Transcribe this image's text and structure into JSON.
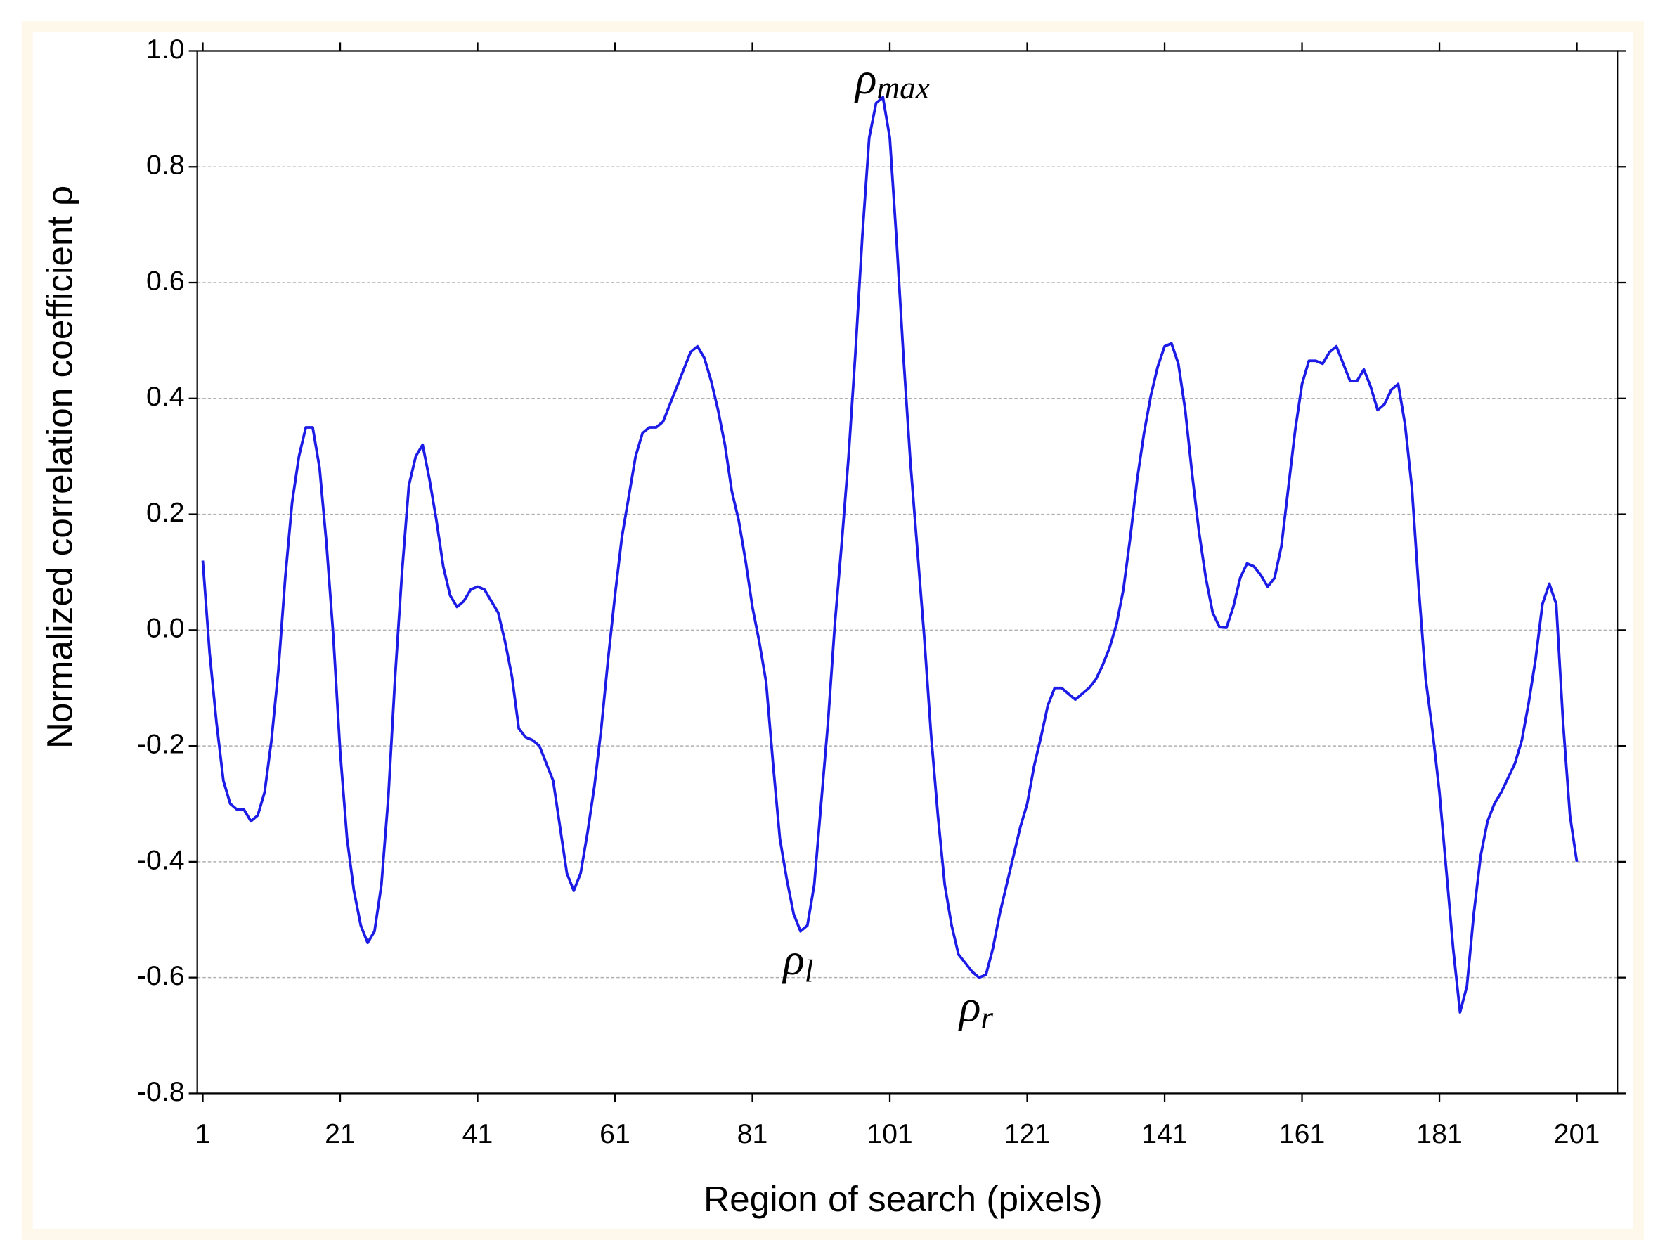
{
  "chart_data": {
    "type": "line",
    "xlabel": "Region of search (pixels)",
    "ylabel": "Normalized correlation coefficient ρ",
    "x": [
      1,
      2,
      3,
      4,
      5,
      6,
      7,
      8,
      9,
      10,
      11,
      12,
      13,
      14,
      15,
      16,
      17,
      18,
      19,
      20,
      21,
      22,
      23,
      24,
      25,
      26,
      27,
      28,
      29,
      30,
      31,
      32,
      33,
      34,
      35,
      36,
      37,
      38,
      39,
      40,
      41,
      42,
      43,
      44,
      45,
      46,
      47,
      48,
      49,
      50,
      51,
      52,
      53,
      54,
      55,
      56,
      57,
      58,
      59,
      60,
      61,
      62,
      63,
      64,
      65,
      66,
      67,
      68,
      69,
      70,
      71,
      72,
      73,
      74,
      75,
      76,
      77,
      78,
      79,
      80,
      81,
      82,
      83,
      84,
      85,
      86,
      87,
      88,
      89,
      90,
      91,
      92,
      93,
      94,
      95,
      96,
      97,
      98,
      99,
      100,
      101,
      102,
      103,
      104,
      105,
      106,
      107,
      108,
      109,
      110,
      111,
      112,
      113,
      114,
      115,
      116,
      117,
      118,
      119,
      120,
      121,
      122,
      123,
      124,
      125,
      126,
      127,
      128,
      129,
      130,
      131,
      132,
      133,
      134,
      135,
      136,
      137,
      138,
      139,
      140,
      141,
      142,
      143,
      144,
      145,
      146,
      147,
      148,
      149,
      150,
      151,
      152,
      153,
      154,
      155,
      156,
      157,
      158,
      159,
      160,
      161,
      162,
      163,
      164,
      165,
      166,
      167,
      168,
      169,
      170,
      171,
      172,
      173,
      174,
      175,
      176,
      177,
      178,
      179,
      180,
      181,
      182,
      183,
      184,
      185,
      186,
      187,
      188,
      189,
      190,
      191,
      192,
      193,
      194,
      195,
      196,
      197,
      198,
      199,
      200,
      201
    ],
    "series": [
      {
        "color": "#1c1ce6",
        "values": [
          0.12,
          -0.04,
          -0.16,
          -0.26,
          -0.3,
          -0.31,
          -0.31,
          -0.33,
          -0.32,
          -0.28,
          -0.19,
          -0.07,
          0.09,
          0.22,
          0.3,
          0.35,
          0.35,
          0.28,
          0.15,
          -0.01,
          -0.21,
          -0.36,
          -0.45,
          -0.51,
          -0.54,
          -0.52,
          -0.44,
          -0.29,
          -0.08,
          0.1,
          0.25,
          0.3,
          0.32,
          0.26,
          0.19,
          0.11,
          0.06,
          0.04,
          0.05,
          0.07,
          0.075,
          0.07,
          0.05,
          0.03,
          -0.02,
          -0.08,
          -0.17,
          -0.185,
          -0.19,
          -0.2,
          -0.23,
          -0.26,
          -0.34,
          -0.42,
          -0.45,
          -0.42,
          -0.35,
          -0.27,
          -0.17,
          -0.05,
          0.06,
          0.16,
          0.23,
          0.3,
          0.34,
          0.35,
          0.35,
          0.36,
          0.39,
          0.42,
          0.45,
          0.48,
          0.49,
          0.47,
          0.43,
          0.38,
          0.32,
          0.24,
          0.19,
          0.12,
          0.04,
          -0.02,
          -0.09,
          -0.23,
          -0.36,
          -0.43,
          -0.49,
          -0.52,
          -0.51,
          -0.44,
          -0.3,
          -0.16,
          0.01,
          0.15,
          0.3,
          0.48,
          0.68,
          0.85,
          0.91,
          0.92,
          0.85,
          0.67,
          0.47,
          0.29,
          0.14,
          -0.01,
          -0.18,
          -0.32,
          -0.44,
          -0.51,
          -0.56,
          -0.575,
          -0.59,
          -0.6,
          -0.595,
          -0.55,
          -0.49,
          -0.44,
          -0.39,
          -0.34,
          -0.3,
          -0.235,
          -0.185,
          -0.13,
          -0.1,
          -0.1,
          -0.11,
          -0.12,
          -0.11,
          -0.1,
          -0.085,
          -0.06,
          -0.03,
          0.01,
          0.07,
          0.16,
          0.26,
          0.34,
          0.405,
          0.455,
          0.49,
          0.495,
          0.46,
          0.38,
          0.27,
          0.17,
          0.09,
          0.03,
          0.005,
          0.004,
          0.04,
          0.09,
          0.115,
          0.11,
          0.095,
          0.075,
          0.09,
          0.145,
          0.245,
          0.345,
          0.425,
          0.465,
          0.465,
          0.46,
          0.48,
          0.49,
          0.46,
          0.43,
          0.43,
          0.45,
          0.42,
          0.38,
          0.39,
          0.415,
          0.425,
          0.355,
          0.245,
          0.07,
          -0.085,
          -0.175,
          -0.28,
          -0.415,
          -0.55,
          -0.66,
          -0.615,
          -0.49,
          -0.39,
          -0.33,
          -0.3,
          -0.28,
          -0.255,
          -0.23,
          -0.19,
          -0.125,
          -0.05,
          0.045,
          0.08,
          0.045,
          -0.16,
          -0.32,
          -0.4
        ]
      }
    ],
    "xlim": [
      0.2,
      206.9
    ],
    "xticks": [
      1,
      21,
      41,
      61,
      81,
      101,
      121,
      141,
      161,
      181,
      201
    ],
    "ylim": [
      -0.8,
      1.0
    ],
    "yticks": [
      {
        "value": 1,
        "label": "1.0"
      },
      {
        "value": 0.8,
        "label": "0.8"
      },
      {
        "value": 0.6,
        "label": "0.6"
      },
      {
        "value": 0.4,
        "label": "0.4"
      },
      {
        "value": 0.2,
        "label": "0.2"
      },
      {
        "value": 0,
        "label": "0.0"
      },
      {
        "value": -0.2,
        "label": "-0.2"
      },
      {
        "value": -0.4,
        "label": "-0.4"
      },
      {
        "value": -0.6,
        "label": "-0.6"
      },
      {
        "value": -0.8,
        "label": "-0.8"
      }
    ],
    "grid": true,
    "annotations": [
      {
        "text": "ρ",
        "sub": "max"
      },
      {
        "text": "ρ",
        "sub": "l"
      },
      {
        "text": "ρ",
        "sub": "r"
      }
    ]
  }
}
